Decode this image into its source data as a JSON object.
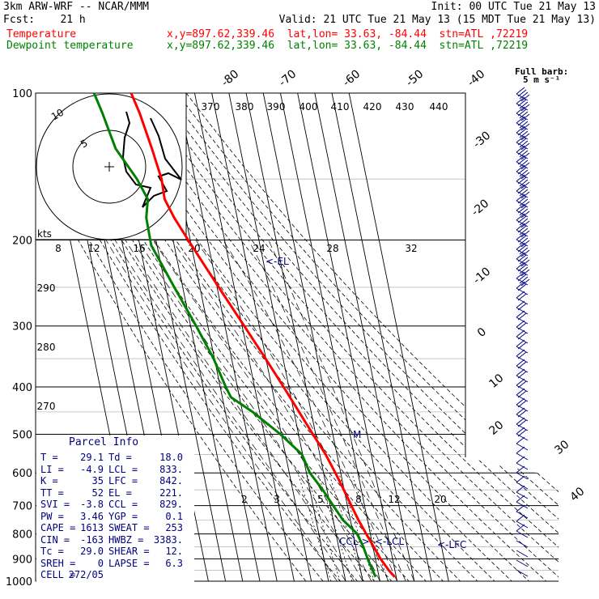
{
  "header": {
    "model": "3km ARW-WRF -- NCAR/MMM",
    "init": "Init: 00 UTC Tue 21 May 13",
    "fcst_label": "Fcst:",
    "fcst_value": "21 h",
    "valid": "Valid: 21 UTC Tue 21 May 13 (15 MDT Tue 21 May 13)",
    "temp_label": "Temperature",
    "temp_loc": "x,y=897.62,339.46  lat,lon= 33.63, -84.44  stn=ATL ,72219",
    "dew_label": "Dewpoint temperature",
    "dew_loc": "x,y=897.62,339.46  lat,lon= 33.63, -84.44  stn=ATL ,72219"
  },
  "barbs": {
    "title_line1": "Full barb:",
    "title_line2": "5 m s⁻¹"
  },
  "hodograph": {
    "units_label": "kts",
    "ring_labels": [
      "5",
      "10"
    ]
  },
  "parcel": {
    "title": "Parcel Info",
    "rows": [
      [
        "T",
        "29.1",
        "Td",
        "18.0"
      ],
      [
        "LI",
        "-4.9",
        "LCL",
        "833."
      ],
      [
        "K",
        "35",
        "LFC",
        "842."
      ],
      [
        "TT",
        "52",
        "EL",
        "221."
      ],
      [
        "SVI",
        "-3.8",
        "CCL",
        "829."
      ],
      [
        "PW",
        "3.46",
        "YGP",
        "0.1"
      ],
      [
        "CAPE",
        "1613",
        "SWEAT",
        "253"
      ],
      [
        "CIN",
        "-163",
        "HWBZ",
        "3383."
      ],
      [
        "Tc",
        "29.0",
        "SHEAR",
        "12."
      ],
      [
        "SREH",
        "0",
        "LAPSE",
        "6.3"
      ],
      [
        "CELL",
        "272/05",
        "",
        ""
      ]
    ]
  },
  "chart_data": {
    "type": "line",
    "subtype": "skew-T log-p diagram",
    "y_axis": {
      "label": "",
      "scale": "log",
      "units": "hPa",
      "ticks": [
        100,
        200,
        300,
        400,
        500,
        600,
        700,
        800,
        900,
        1000
      ]
    },
    "isotherm_labels": [
      "-80",
      "-70",
      "-60",
      "-50",
      "-40",
      "-30",
      "-20",
      "-10",
      "0",
      "10",
      "20",
      "30",
      "40"
    ],
    "theta_labels": [
      "370",
      "380",
      "390",
      "400",
      "410",
      "420",
      "430",
      "440"
    ],
    "theta_left_labels": [
      "290",
      "280",
      "270"
    ],
    "mixing_ratio_labels_upper": [
      "8",
      "12",
      "16",
      "20",
      "24",
      "28",
      "32"
    ],
    "mixing_ratio_labels_lower": [
      "2",
      "3",
      "5",
      "8",
      "12",
      "20"
    ],
    "annotations": [
      "<-EL",
      "M",
      "CCL->",
      "<-LCL",
      "<-LFC"
    ],
    "series": [
      {
        "name": "Temperature",
        "color": "#ff0000",
        "points": [
          [
            980,
            29.1
          ],
          [
            950,
            26.5
          ],
          [
            900,
            23.0
          ],
          [
            850,
            20.4
          ],
          [
            800,
            17.6
          ],
          [
            750,
            14.8
          ],
          [
            700,
            12.3
          ],
          [
            650,
            9.8
          ],
          [
            600,
            6.9
          ],
          [
            550,
            3.4
          ],
          [
            500,
            -1.6
          ],
          [
            450,
            -7.0
          ],
          [
            400,
            -13.1
          ],
          [
            350,
            -20.2
          ],
          [
            300,
            -28.8
          ],
          [
            250,
            -39.0
          ],
          [
            220,
            -46.0
          ],
          [
            200,
            -51.2
          ],
          [
            180,
            -56.7
          ],
          [
            165,
            -60.1
          ],
          [
            150,
            -59.5
          ],
          [
            130,
            -61.5
          ],
          [
            110,
            -64.4
          ],
          [
            100,
            -67.0
          ]
        ]
      },
      {
        "name": "Dewpoint temperature",
        "color": "#008000",
        "points": [
          [
            980,
            18.0
          ],
          [
            950,
            17.0
          ],
          [
            900,
            15.5
          ],
          [
            850,
            14.4
          ],
          [
            800,
            12.4
          ],
          [
            750,
            5.8
          ],
          [
            700,
            1.7
          ],
          [
            650,
            -2.5
          ],
          [
            600,
            -8.0
          ],
          [
            550,
            -10.4
          ],
          [
            500,
            -20.5
          ],
          [
            450,
            -34.1
          ],
          [
            420,
            -45.0
          ],
          [
            400,
            -46.8
          ],
          [
            350,
            -50.5
          ],
          [
            300,
            -56.8
          ],
          [
            250,
            -64.9
          ],
          [
            205,
            -73.4
          ],
          [
            180,
            -73.0
          ],
          [
            165,
            -69.9
          ],
          [
            150,
            -73.8
          ],
          [
            130,
            -82.6
          ],
          [
            110,
            -86.1
          ],
          [
            100,
            -88.6
          ]
        ]
      }
    ],
    "hodograph_path": [
      [
        0.0,
        0.0
      ],
      [
        0.0,
        0.0
      ]
    ]
  }
}
